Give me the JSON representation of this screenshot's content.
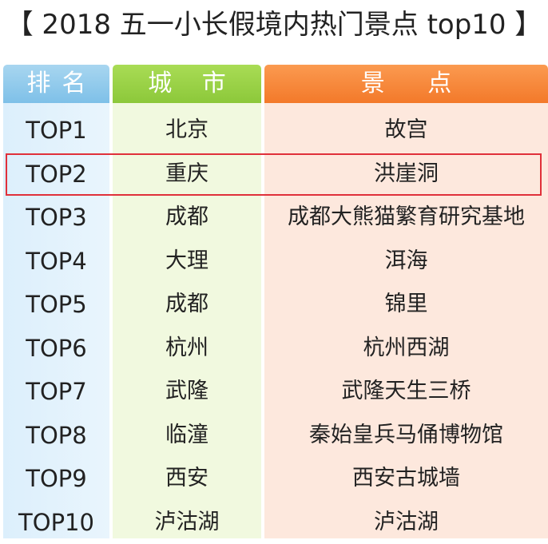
{
  "chart_data": {
    "type": "table",
    "title": "【 2018 五一小长假境内热门景点 top10 】",
    "columns": [
      "排名",
      "城 市",
      "景 点"
    ],
    "rows": [
      {
        "rank": "TOP1",
        "city": "北京",
        "spot": "故宫"
      },
      {
        "rank": "TOP2",
        "city": "重庆",
        "spot": "洪崖洞"
      },
      {
        "rank": "TOP3",
        "city": "成都",
        "spot": "成都大熊猫繁育研究基地"
      },
      {
        "rank": "TOP4",
        "city": "大理",
        "spot": "洱海"
      },
      {
        "rank": "TOP5",
        "city": "成都",
        "spot": "锦里"
      },
      {
        "rank": "TOP6",
        "city": "杭州",
        "spot": "杭州西湖"
      },
      {
        "rank": "TOP7",
        "city": "武隆",
        "spot": "武隆天生三桥"
      },
      {
        "rank": "TOP8",
        "city": "临潼",
        "spot": "秦始皇兵马俑博物馆"
      },
      {
        "rank": "TOP9",
        "city": "西安",
        "spot": "西安古城墙"
      },
      {
        "rank": "TOP10",
        "city": "泸沽湖",
        "spot": "泸沽湖"
      }
    ],
    "highlighted_row": 2,
    "colors": {
      "rank_header": "#7ec0e8",
      "city_header": "#8cc83a",
      "spot_header": "#f3792a",
      "highlight_border": "#e0303a"
    }
  }
}
